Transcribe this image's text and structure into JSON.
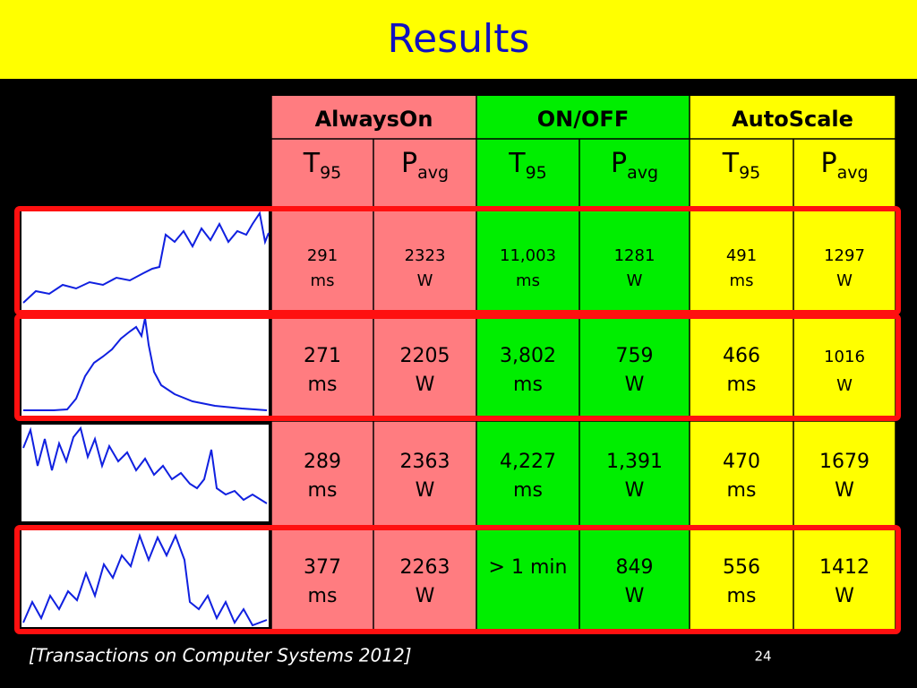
{
  "header": {
    "title": "Results"
  },
  "table": {
    "groups": [
      "AlwaysOn",
      "ON/OFF",
      "AutoScale"
    ],
    "columns": [
      {
        "main": "T",
        "sub": "95"
      },
      {
        "main": "P",
        "sub": "avg"
      },
      {
        "main": "T",
        "sub": "95"
      },
      {
        "main": "P",
        "sub": "avg"
      },
      {
        "main": "T",
        "sub": "95"
      },
      {
        "main": "P",
        "sub": "avg"
      }
    ],
    "rows": [
      [
        {
          "value": "291",
          "unit": "ms"
        },
        {
          "value": "2323",
          "unit": "W"
        },
        {
          "value": "11,003",
          "unit": "ms"
        },
        {
          "value": "1281",
          "unit": "W"
        },
        {
          "value": "491",
          "unit": "ms"
        },
        {
          "value": "1297",
          "unit": "W"
        }
      ],
      [
        {
          "value": "271",
          "unit": "ms"
        },
        {
          "value": "2205",
          "unit": "W"
        },
        {
          "value": "3,802",
          "unit": "ms"
        },
        {
          "value": "759",
          "unit": "W"
        },
        {
          "value": "466",
          "unit": "ms"
        },
        {
          "value": "1016",
          "unit": "W"
        }
      ],
      [
        {
          "value": "289",
          "unit": "ms"
        },
        {
          "value": "2363",
          "unit": "W"
        },
        {
          "value": "4,227",
          "unit": "ms"
        },
        {
          "value": "1,391",
          "unit": "W"
        },
        {
          "value": "470",
          "unit": "ms"
        },
        {
          "value": "1679",
          "unit": "W"
        }
      ],
      [
        {
          "value": "377",
          "unit": "ms"
        },
        {
          "value": "2263",
          "unit": "W"
        },
        {
          "value": "> 1 min"
        },
        {
          "value": "849",
          "unit": "W"
        },
        {
          "value": "556",
          "unit": "ms"
        },
        {
          "value": "1412",
          "unit": "W"
        }
      ]
    ]
  },
  "footer": {
    "citation": "[Transactions on Computer Systems  2012]",
    "page_number": "24"
  }
}
